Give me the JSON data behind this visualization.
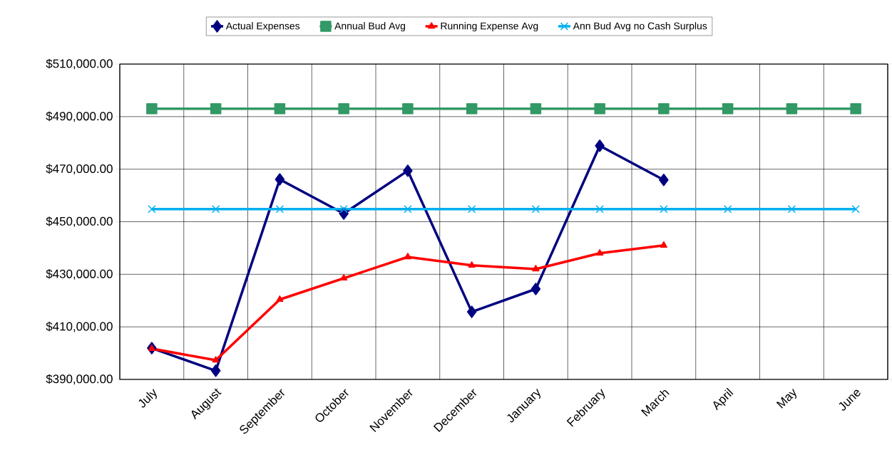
{
  "chart_data": {
    "type": "line",
    "categories": [
      "July",
      "August",
      "September",
      "October",
      "November",
      "December",
      "January",
      "February",
      "March",
      "April",
      "May",
      "June"
    ],
    "series": [
      {
        "name": "Actual Expenses",
        "color": "#000080",
        "marker": "diamond",
        "values": [
          401900,
          393300,
          466100,
          453100,
          469400,
          415700,
          424400,
          478900,
          465900,
          null,
          null,
          null
        ]
      },
      {
        "name": "Annual Bud Avg",
        "color": "#339966",
        "marker": "square",
        "values": [
          493000,
          493000,
          493000,
          493000,
          493000,
          493000,
          493000,
          493000,
          493000,
          493000,
          493000,
          493000
        ]
      },
      {
        "name": "Running Expense Avg",
        "color": "#ff0000",
        "marker": "triangle",
        "values": [
          401700,
          397300,
          420400,
          428500,
          436600,
          433400,
          432000,
          438000,
          441000,
          null,
          null,
          null
        ]
      },
      {
        "name": "Ann Bud Avg no Cash Surplus",
        "color": "#00b0f0",
        "marker": "cross",
        "values": [
          454800,
          454800,
          454800,
          454800,
          454800,
          454800,
          454800,
          454800,
          454800,
          454800,
          454800,
          454800
        ]
      }
    ],
    "ylim": [
      390000,
      510000
    ],
    "yticks": [
      {
        "value": 390000,
        "label": "$390,000.00"
      },
      {
        "value": 410000,
        "label": "$410,000.00"
      },
      {
        "value": 430000,
        "label": "$430,000.00"
      },
      {
        "value": 450000,
        "label": "$450,000.00"
      },
      {
        "value": 470000,
        "label": "$470,000.00"
      },
      {
        "value": 490000,
        "label": "$490,000.00"
      },
      {
        "value": 510000,
        "label": "$510,000.00"
      }
    ],
    "grid": true,
    "legend": "top"
  }
}
